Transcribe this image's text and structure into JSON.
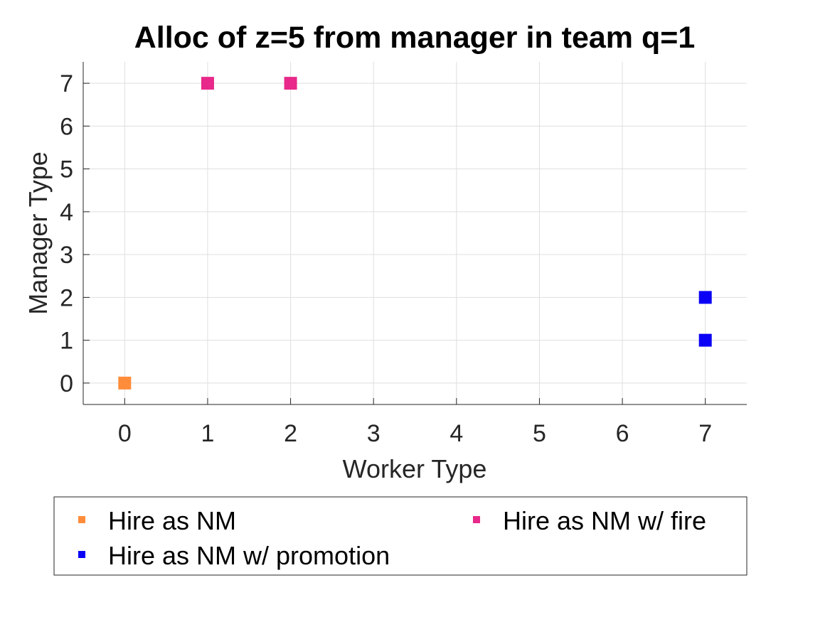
{
  "chart_data": {
    "type": "scatter",
    "title": "Alloc of z=5 from manager in team q=1",
    "xlabel": "Worker Type",
    "ylabel": "Manager Type",
    "xlim": [
      -0.5,
      7.5
    ],
    "ylim": [
      -0.5,
      7.5
    ],
    "xticks": [
      0,
      1,
      2,
      3,
      4,
      5,
      6,
      7
    ],
    "yticks": [
      0,
      1,
      2,
      3,
      4,
      5,
      6,
      7
    ],
    "grid": true,
    "legend_position": "bottom",
    "marker": "square",
    "series": [
      {
        "name": "Hire as NM",
        "color": "#ff8c3a",
        "points": [
          {
            "x": 0,
            "y": 0
          }
        ]
      },
      {
        "name": "Hire as NM w/ promotion",
        "color": "#0a00f5",
        "points": [
          {
            "x": 7,
            "y": 1
          },
          {
            "x": 7,
            "y": 2
          }
        ]
      },
      {
        "name": "Hire as NM w/ fire",
        "color": "#e8288a",
        "points": [
          {
            "x": 1,
            "y": 7
          },
          {
            "x": 2,
            "y": 7
          }
        ]
      }
    ]
  }
}
